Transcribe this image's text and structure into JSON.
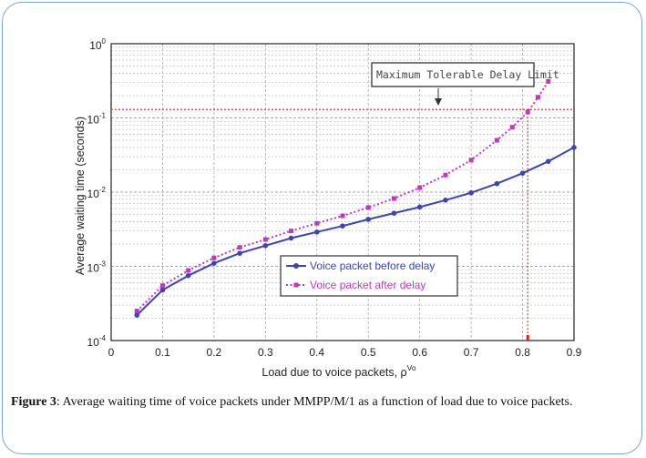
{
  "colors": {
    "frame_border": "#7ca6c8",
    "before_series": "#3b45b8",
    "after_series": "#c236c2",
    "limit_line": "#e02020",
    "grid": "#a8a8a8",
    "grid_dense": "#c4c4c4"
  },
  "caption": {
    "label": "Figure 3",
    "text": ": Average waiting time of voice packets under MMPP/M/1 as a function of load due to voice packets."
  },
  "chart_data": {
    "type": "line",
    "title": "",
    "xlabel": "Load due to voice packets, ρ",
    "xlabel_superscript": "Vo",
    "ylabel": "Average waiting time (seconds)",
    "xlim": [
      0,
      0.9
    ],
    "ylim": [
      0.0001,
      1
    ],
    "yscale": "log",
    "grid": true,
    "x_ticks": [
      "0",
      "0.1",
      "0.2",
      "0.3",
      "0.4",
      "0.5",
      "0.6",
      "0.7",
      "0.8",
      "0.9"
    ],
    "y_ticks": [
      {
        "base": "10",
        "exp": "-4",
        "value": 0.0001
      },
      {
        "base": "10",
        "exp": "-3",
        "value": 0.001
      },
      {
        "base": "10",
        "exp": "-2",
        "value": 0.01
      },
      {
        "base": "10",
        "exp": "-1",
        "value": 0.1
      },
      {
        "base": "10",
        "exp": "0",
        "value": 1
      }
    ],
    "series": [
      {
        "name": "Voice packet before delay",
        "style": "solid-star",
        "x": [
          0.05,
          0.1,
          0.15,
          0.2,
          0.25,
          0.3,
          0.35,
          0.4,
          0.45,
          0.5,
          0.55,
          0.6,
          0.65,
          0.7,
          0.75,
          0.8,
          0.85,
          0.9
        ],
        "y": [
          0.00022,
          0.00048,
          0.00075,
          0.0011,
          0.0015,
          0.0019,
          0.0024,
          0.0029,
          0.0035,
          0.0043,
          0.0052,
          0.0063,
          0.0078,
          0.0098,
          0.013,
          0.018,
          0.026,
          0.04
        ]
      },
      {
        "name": "Voice packet after delay",
        "style": "dotted-square",
        "x": [
          0.05,
          0.1,
          0.15,
          0.2,
          0.25,
          0.3,
          0.35,
          0.4,
          0.45,
          0.5,
          0.55,
          0.6,
          0.65,
          0.7,
          0.75,
          0.78,
          0.81,
          0.83,
          0.85
        ],
        "y": [
          0.00025,
          0.00055,
          0.00088,
          0.0013,
          0.0018,
          0.0023,
          0.003,
          0.0038,
          0.0048,
          0.0062,
          0.0082,
          0.0115,
          0.017,
          0.027,
          0.05,
          0.075,
          0.12,
          0.19,
          0.31
        ]
      }
    ],
    "threshold": {
      "label": "Maximum Tolerable Delay Limit",
      "y": 0.13,
      "x_intersect": 0.81
    },
    "legend_position": "center-right"
  }
}
